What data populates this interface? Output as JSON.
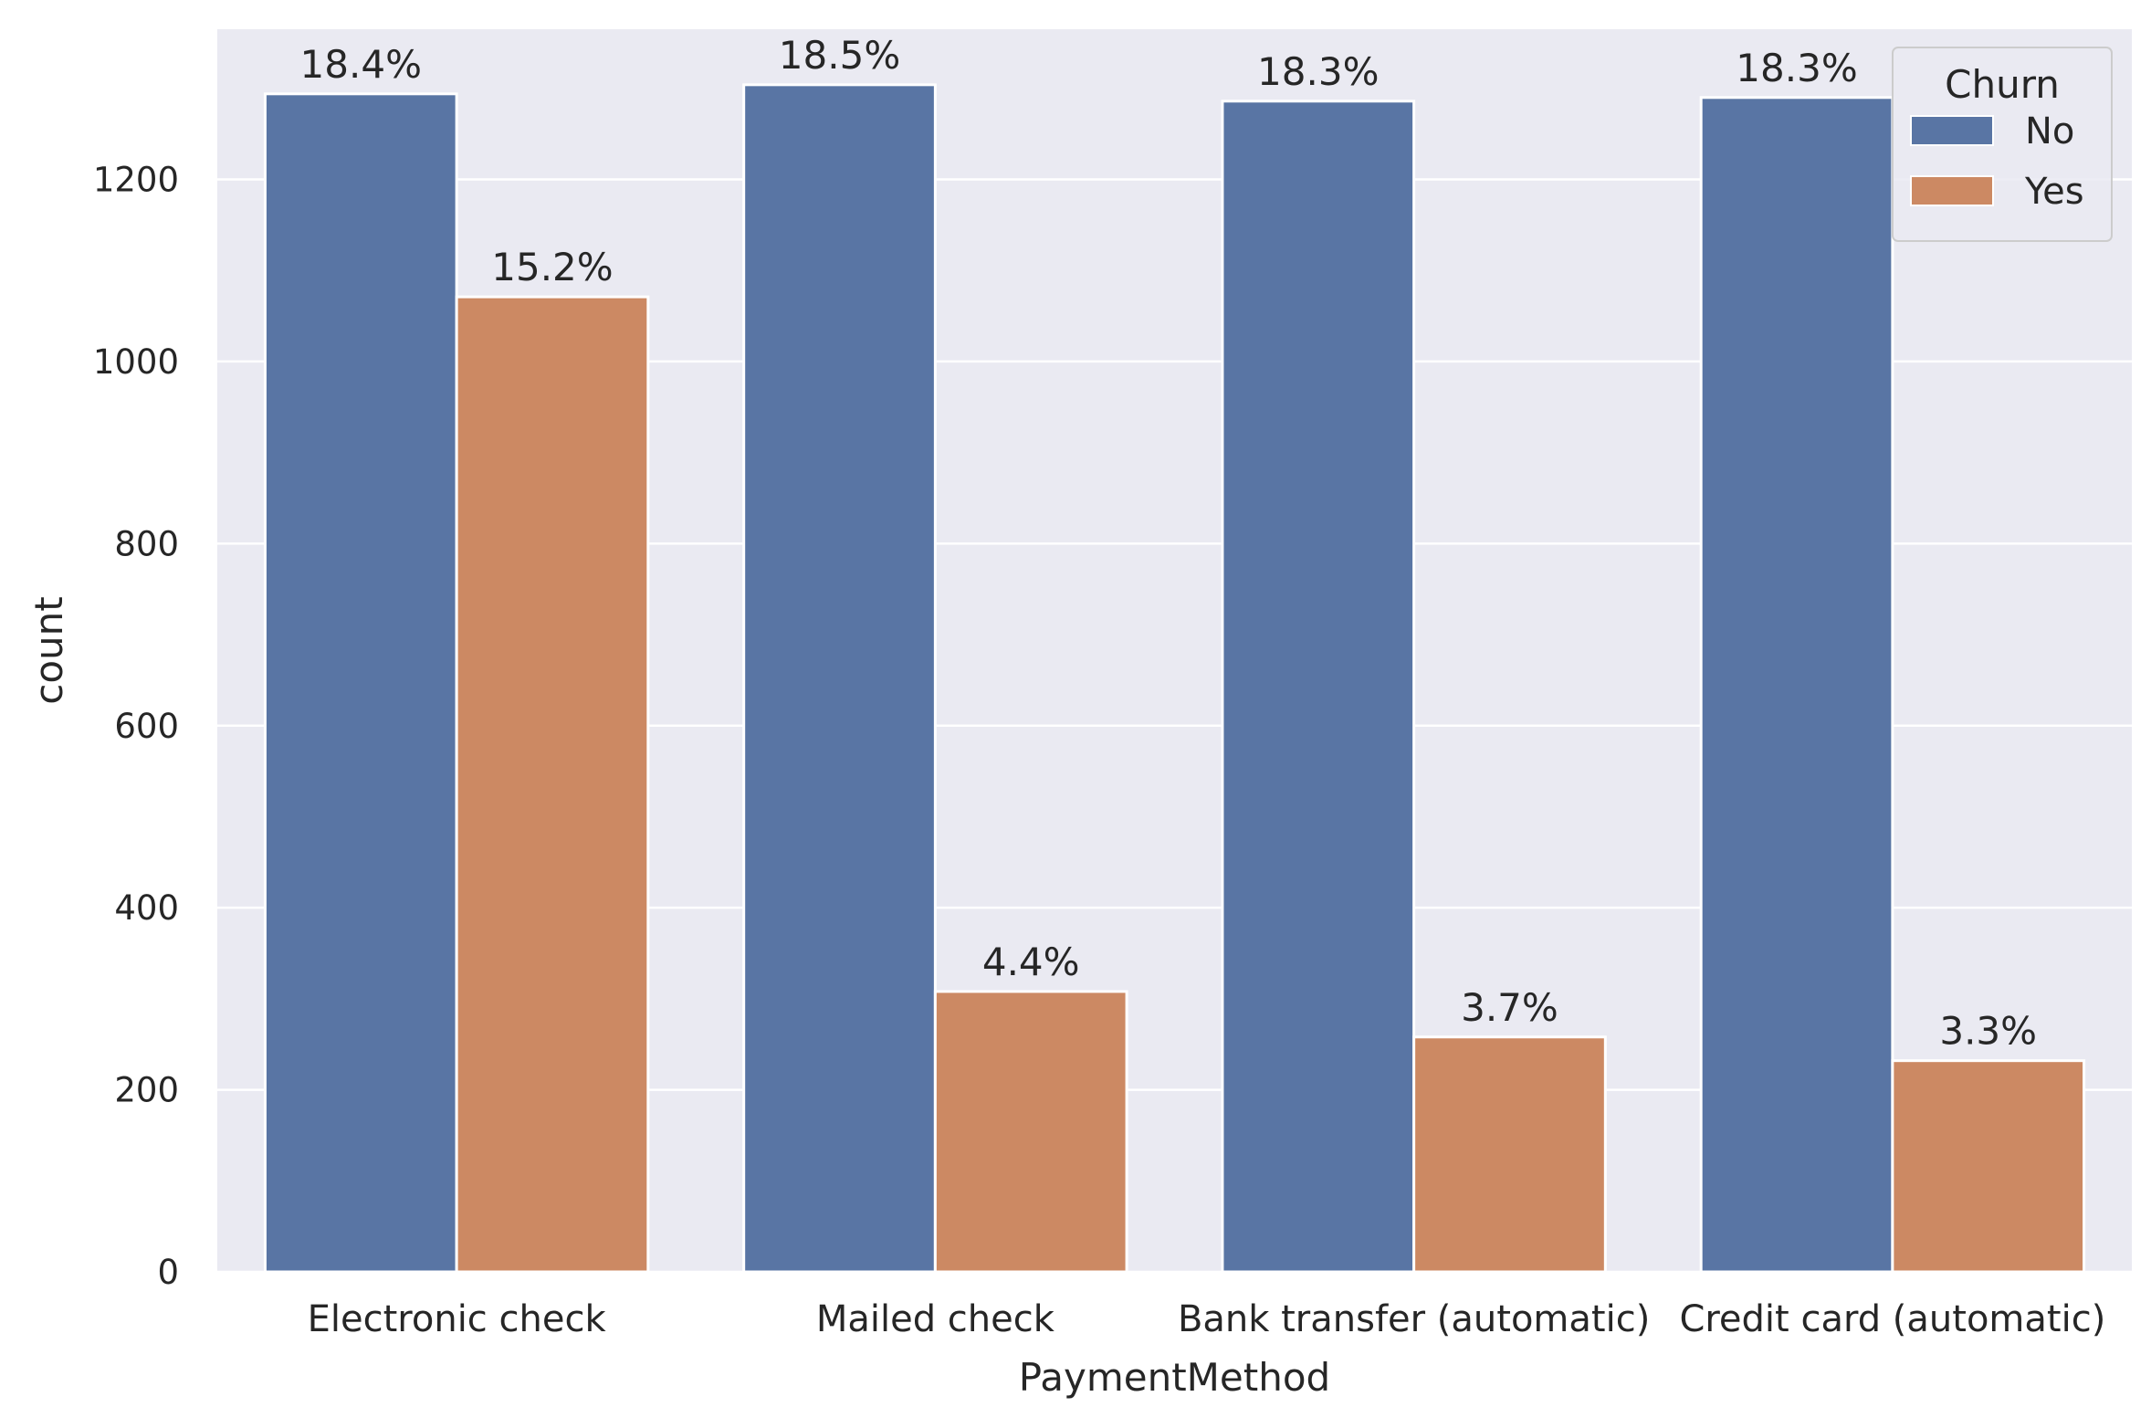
{
  "chart_data": {
    "type": "bar",
    "title": "",
    "xlabel": "PaymentMethod",
    "ylabel": "count",
    "categories": [
      "Electronic check",
      "Mailed check",
      "Bank transfer (automatic)",
      "Credit card (automatic)"
    ],
    "series": [
      {
        "name": "No",
        "color": "#5975a4",
        "values": [
          1294,
          1304,
          1286,
          1290
        ],
        "labels": [
          "18.4%",
          "18.5%",
          "18.3%",
          "18.3%"
        ]
      },
      {
        "name": "Yes",
        "color": "#cc8963",
        "values": [
          1071,
          308,
          258,
          232
        ],
        "labels": [
          "15.2%",
          "4.4%",
          "3.7%",
          "3.3%"
        ]
      }
    ],
    "ylim": [
      0,
      1365
    ],
    "yticks": [
      "0",
      "200",
      "400",
      "600",
      "800",
      "1000",
      "1200"
    ],
    "grid": true,
    "background": "#eaeaf2",
    "legend": {
      "title": "Churn",
      "placement": "top-right"
    }
  }
}
